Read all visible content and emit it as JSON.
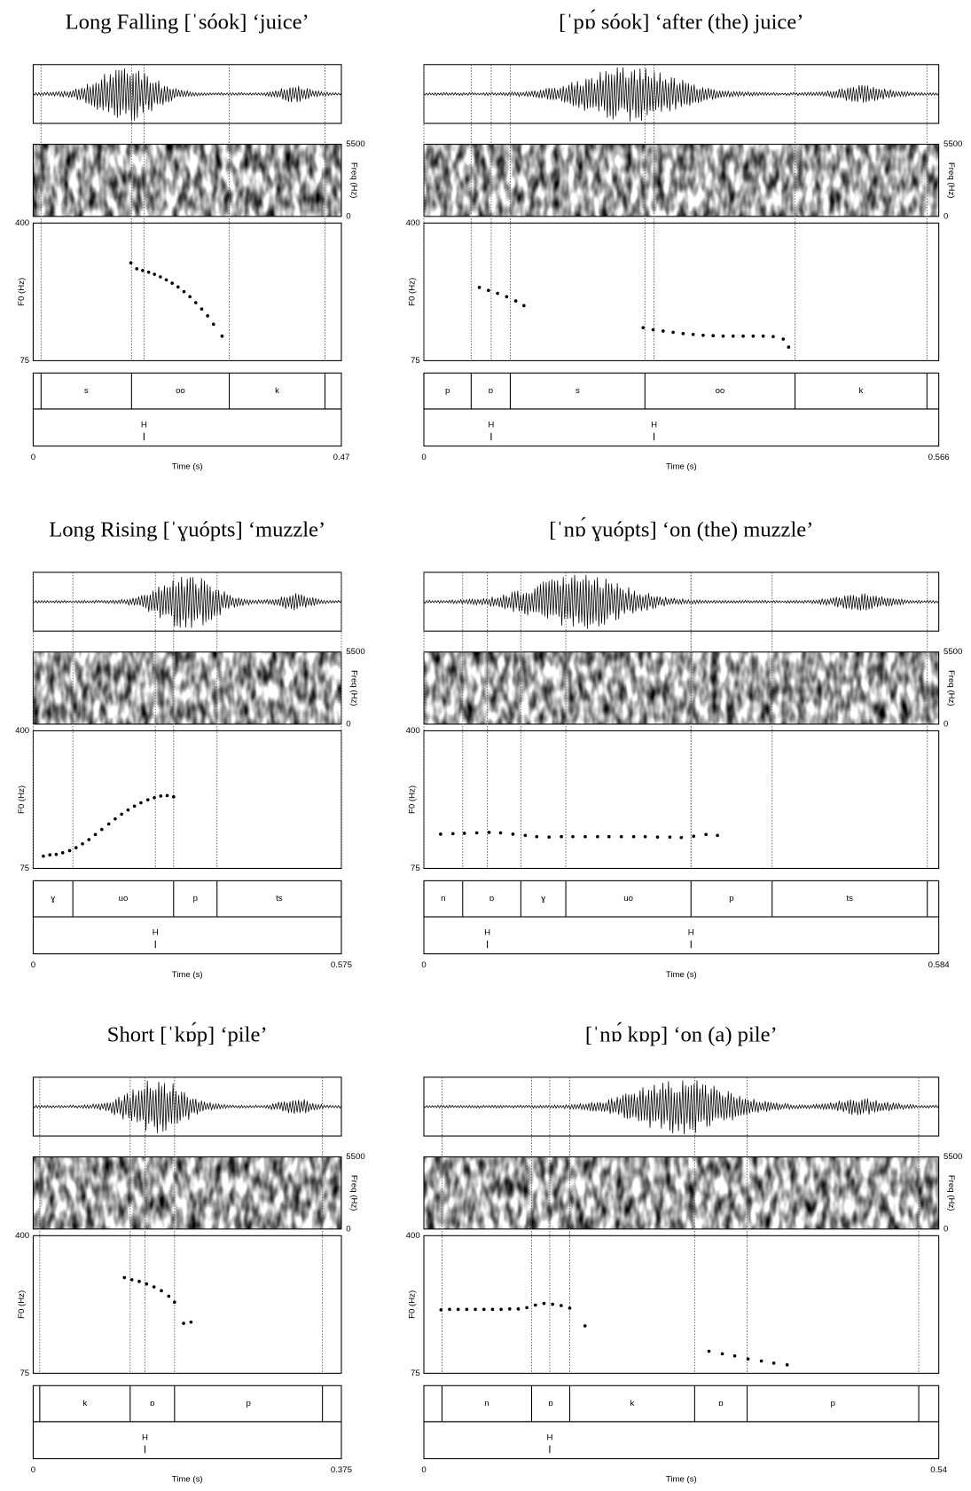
{
  "chart_data": [
    {
      "type": "scatter",
      "title": "Long Falling [ˈsóok] ‘juice’",
      "color": "#000000",
      "x": [
        0.149,
        0.158,
        0.167,
        0.176,
        0.185,
        0.194,
        0.203,
        0.212,
        0.221,
        0.23,
        0.239,
        0.248,
        0.257,
        0.266,
        0.275,
        0.288
      ],
      "values": [
        306,
        292,
        288,
        284,
        279,
        273,
        266,
        258,
        249,
        238,
        226,
        212,
        197,
        181,
        161,
        133
      ],
      "ylabel": "F0 (Hz)",
      "ylim": [
        75,
        400
      ],
      "yticks": [
        75,
        400
      ],
      "xlabel": "Time (s)",
      "xlim": [
        0,
        0.47
      ],
      "xticks": [
        0,
        0.47
      ],
      "y2label": "Freq (Hz)",
      "y2lim": [
        0,
        5500
      ],
      "y2ticks": [
        0,
        5500
      ],
      "segments": [
        {
          "start": 0.012,
          "end": 0.15,
          "label": "s"
        },
        {
          "start": 0.15,
          "end": 0.299,
          "label": "oo"
        },
        {
          "start": 0.299,
          "end": 0.445,
          "label": "k"
        }
      ],
      "tones": [
        {
          "time": 0.169,
          "label": "H"
        }
      ]
    },
    {
      "type": "scatter",
      "title": "[ˈpɒ́ sóok] ‘after (the) juice’",
      "color": "#000000",
      "x": [
        0.061,
        0.071,
        0.081,
        0.091,
        0.101,
        0.11,
        0.241,
        0.252,
        0.263,
        0.274,
        0.285,
        0.296,
        0.307,
        0.318,
        0.329,
        0.34,
        0.351,
        0.362,
        0.373,
        0.384,
        0.395,
        0.401
      ],
      "values": [
        248,
        241,
        234,
        226,
        216,
        205,
        153,
        148,
        145,
        142,
        139,
        137,
        135,
        134,
        133,
        133,
        133,
        133,
        133,
        132,
        126,
        107
      ],
      "ylabel": "F0 (Hz)",
      "ylim": [
        75,
        400
      ],
      "yticks": [
        75,
        400
      ],
      "xlabel": "Time (s)",
      "xlim": [
        0,
        0.566
      ],
      "xticks": [
        0,
        0.566
      ],
      "y2label": "Freq (Hz)",
      "y2lim": [
        0,
        5500
      ],
      "y2ticks": [
        0,
        5500
      ],
      "segments": [
        {
          "start": 0,
          "end": 0.052,
          "label": "p"
        },
        {
          "start": 0.052,
          "end": 0.095,
          "label": "ɒ"
        },
        {
          "start": 0.095,
          "end": 0.243,
          "label": "s"
        },
        {
          "start": 0.243,
          "end": 0.408,
          "label": "oo"
        },
        {
          "start": 0.408,
          "end": 0.553,
          "label": "k"
        }
      ],
      "tones": [
        {
          "time": 0.074,
          "label": "H"
        },
        {
          "time": 0.253,
          "label": "H"
        }
      ]
    },
    {
      "type": "scatter",
      "title": "Long Rising [ˈɣuópts] ‘muzzle’",
      "color": "#000000",
      "x": [
        0.019,
        0.031,
        0.043,
        0.055,
        0.068,
        0.08,
        0.092,
        0.104,
        0.116,
        0.128,
        0.141,
        0.153,
        0.165,
        0.177,
        0.189,
        0.201,
        0.214,
        0.226,
        0.238,
        0.25,
        0.262
      ],
      "values": [
        104,
        107,
        108,
        112,
        117,
        124,
        133,
        143,
        155,
        167,
        180,
        192,
        203,
        213,
        222,
        230,
        237,
        242,
        246,
        247,
        244
      ],
      "ylabel": "F0 (Hz)",
      "ylim": [
        75,
        400
      ],
      "yticks": [
        75,
        400
      ],
      "xlabel": "Time (s)",
      "xlim": [
        0,
        0.575
      ],
      "xticks": [
        0,
        0.575
      ],
      "y2label": "Freq (Hz)",
      "y2lim": [
        0,
        5500
      ],
      "y2ticks": [
        0,
        5500
      ],
      "segments": [
        {
          "start": 0,
          "end": 0.074,
          "label": "ɣ"
        },
        {
          "start": 0.074,
          "end": 0.262,
          "label": "uo"
        },
        {
          "start": 0.262,
          "end": 0.343,
          "label": "p"
        },
        {
          "start": 0.343,
          "end": 0.575,
          "label": "ts"
        }
      ],
      "tones": [
        {
          "time": 0.228,
          "label": "H"
        }
      ]
    },
    {
      "type": "scatter",
      "title": "[ˈnɒ́ ɣuópts] ‘on (the) muzzle’",
      "color": "#000000",
      "x": [
        0.019,
        0.033,
        0.046,
        0.06,
        0.074,
        0.087,
        0.101,
        0.115,
        0.128,
        0.142,
        0.156,
        0.169,
        0.183,
        0.197,
        0.21,
        0.224,
        0.238,
        0.251,
        0.265,
        0.279,
        0.292,
        0.306,
        0.32,
        0.333
      ],
      "values": [
        156,
        157,
        158,
        159,
        160,
        159,
        156,
        153,
        150,
        149,
        150,
        150,
        150,
        150,
        150,
        150,
        150,
        150,
        149,
        149,
        148,
        151,
        155,
        153
      ],
      "ylabel": "F0 (Hz)",
      "ylim": [
        75,
        400
      ],
      "yticks": [
        75,
        400
      ],
      "xlabel": "Time (s)",
      "xlim": [
        0,
        0.584
      ],
      "xticks": [
        0,
        0.584
      ],
      "y2label": "Freq (Hz)",
      "y2lim": [
        0,
        5500
      ],
      "y2ticks": [
        0,
        5500
      ],
      "segments": [
        {
          "start": 0,
          "end": 0.044,
          "label": "n"
        },
        {
          "start": 0.044,
          "end": 0.11,
          "label": "ɒ"
        },
        {
          "start": 0.11,
          "end": 0.161,
          "label": "ɣ"
        },
        {
          "start": 0.161,
          "end": 0.303,
          "label": "uo"
        },
        {
          "start": 0.303,
          "end": 0.395,
          "label": "p"
        },
        {
          "start": 0.395,
          "end": 0.571,
          "label": "ts"
        }
      ],
      "tones": [
        {
          "time": 0.072,
          "label": "H"
        },
        {
          "time": 0.303,
          "label": "H"
        }
      ]
    },
    {
      "type": "scatter",
      "title": "Short [ˈkɒ́p] ‘pile’",
      "color": "#000000",
      "x": [
        0.111,
        0.12,
        0.129,
        0.138,
        0.147,
        0.156,
        0.165,
        0.172,
        0.183,
        0.192
      ],
      "values": [
        301,
        296,
        292,
        286,
        279,
        270,
        257,
        243,
        193,
        196
      ],
      "ylabel": "F0 (Hz)",
      "ylim": [
        75,
        400
      ],
      "yticks": [
        75,
        400
      ],
      "xlabel": "Time (s)",
      "xlim": [
        0,
        0.375
      ],
      "xticks": [
        0,
        0.375
      ],
      "y2label": "Freq (Hz)",
      "y2lim": [
        0,
        5500
      ],
      "y2ticks": [
        0,
        5500
      ],
      "segments": [
        {
          "start": 0.008,
          "end": 0.118,
          "label": "k"
        },
        {
          "start": 0.118,
          "end": 0.172,
          "label": "ɒ"
        },
        {
          "start": 0.172,
          "end": 0.352,
          "label": "p"
        }
      ],
      "tones": [
        {
          "time": 0.136,
          "label": "H"
        }
      ]
    },
    {
      "type": "scatter",
      "title": "[ˈnɒ́ kɒp] ‘on (a) pile’",
      "color": "#000000",
      "x": [
        0.018,
        0.027,
        0.036,
        0.045,
        0.054,
        0.063,
        0.072,
        0.081,
        0.09,
        0.099,
        0.108,
        0.117,
        0.126,
        0.135,
        0.144,
        0.153,
        0.169,
        0.299,
        0.313,
        0.326,
        0.34,
        0.354,
        0.367,
        0.381
      ],
      "values": [
        225,
        226,
        226,
        226,
        226,
        226,
        226,
        226,
        227,
        227,
        230,
        236,
        240,
        238,
        235,
        229,
        187,
        127,
        121,
        116,
        109,
        104,
        99,
        95
      ],
      "ylabel": "F0 (Hz)",
      "ylim": [
        75,
        400
      ],
      "yticks": [
        75,
        400
      ],
      "xlabel": "Time (s)",
      "xlim": [
        0,
        0.54
      ],
      "xticks": [
        0,
        0.54
      ],
      "y2label": "Freq (Hz)",
      "y2lim": [
        0,
        5500
      ],
      "y2ticks": [
        0,
        5500
      ],
      "segments": [
        {
          "start": 0.019,
          "end": 0.113,
          "label": "n"
        },
        {
          "start": 0.113,
          "end": 0.153,
          "label": "ɒ"
        },
        {
          "start": 0.153,
          "end": 0.284,
          "label": "k"
        },
        {
          "start": 0.284,
          "end": 0.339,
          "label": "ɒ"
        },
        {
          "start": 0.339,
          "end": 0.519,
          "label": "p"
        }
      ],
      "tones": [
        {
          "time": 0.132,
          "label": "H"
        }
      ]
    }
  ]
}
